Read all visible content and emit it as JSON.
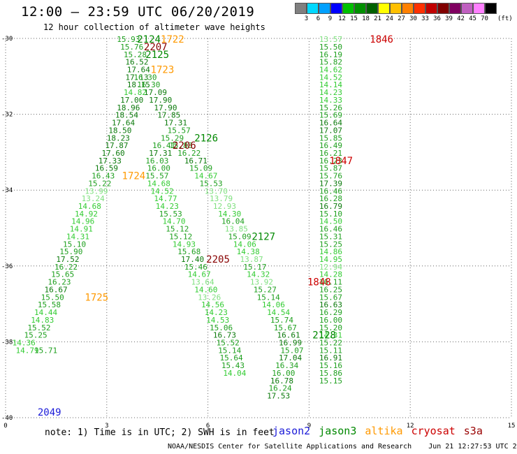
{
  "title": "12:00 – 23:59 UTC 06/20/2019",
  "subtitle": "12 hour collection of altimeter wave heights",
  "colorbar": {
    "colors": [
      "#808080",
      "#00d8ff",
      "#00a0ff",
      "#0000ff",
      "#00c000",
      "#009000",
      "#006000",
      "#ffff00",
      "#ffc000",
      "#ff8000",
      "#ff3000",
      "#c00000",
      "#800000",
      "#800060",
      "#c060c0",
      "#ff80ff",
      "#000000"
    ],
    "labels": [
      "3",
      "6",
      "9",
      "12",
      "15",
      "18",
      "21",
      "24",
      "27",
      "30",
      "33",
      "36",
      "39",
      "42",
      "45",
      "70"
    ],
    "unit": "(ft)"
  },
  "note": "note:  1) Time is in UTC;  2) SWH is in feet",
  "legend": [
    {
      "name": "jason2",
      "color": "#1a1ad8"
    },
    {
      "name": "jason3",
      "color": "#008800"
    },
    {
      "name": "altika",
      "color": "#ff9900"
    },
    {
      "name": "cryosat",
      "color": "#cc0000"
    },
    {
      "name": "s3a",
      "color": "#990000"
    }
  ],
  "footer": {
    "credit": "NOAA/NESDIS Center for Satellite Applications and Research",
    "timestamp": "Jun 21 12:27:53 UTC 2019"
  },
  "chart_data": {
    "type": "scatter",
    "xlim": [
      0,
      15
    ],
    "ylim": [
      -40,
      -30
    ],
    "xticks": [
      0,
      3,
      6,
      9,
      12,
      15
    ],
    "yticks": [
      -30,
      -32,
      -34,
      -36,
      -38,
      -40
    ],
    "grid": true,
    "tracks": [
      {
        "sat": "cryosat",
        "color": "#cc0000",
        "label": "1846",
        "label_pos": [
          10.8,
          -30.02
        ],
        "points": [
          [
            9.3,
            -30.02,
            13.57
          ],
          [
            9.3,
            -30.22,
            15.5
          ],
          [
            9.3,
            -30.42,
            16.19
          ],
          [
            9.3,
            -30.62,
            15.82
          ],
          [
            9.3,
            -30.82,
            14.62
          ],
          [
            9.3,
            -31.02,
            14.52
          ],
          [
            9.3,
            -31.22,
            14.14
          ],
          [
            9.3,
            -31.42,
            14.23
          ],
          [
            9.3,
            -31.62,
            14.33
          ],
          [
            9.3,
            -31.82,
            15.26
          ],
          [
            9.3,
            -32.02,
            15.69
          ],
          [
            9.3,
            -32.22,
            16.64
          ],
          [
            9.3,
            -32.42,
            17.07
          ],
          [
            9.3,
            -32.62,
            15.85
          ],
          [
            9.3,
            -32.82,
            16.49
          ],
          [
            9.3,
            -33.02,
            16.21
          ],
          [
            9.3,
            -33.22,
            16.23
          ],
          [
            9.3,
            -33.42,
            15.87
          ],
          [
            9.3,
            -33.62,
            15.76
          ],
          [
            9.3,
            -33.82,
            17.39
          ],
          [
            9.3,
            -34.02,
            16.46
          ],
          [
            9.3,
            -34.22,
            16.28
          ],
          [
            9.3,
            -34.42,
            16.79
          ],
          [
            9.3,
            -34.62,
            15.1
          ],
          [
            9.3,
            -34.82,
            14.5
          ],
          [
            9.3,
            -35.02,
            16.46
          ],
          [
            9.3,
            -35.22,
            15.31
          ],
          [
            9.3,
            -35.42,
            15.25
          ],
          [
            9.3,
            -35.62,
            14.86
          ],
          [
            9.3,
            -35.82,
            14.95
          ],
          [
            9.3,
            -36.02,
            12.94
          ],
          [
            9.3,
            -36.22,
            14.28
          ],
          [
            9.3,
            -36.42,
            16.11
          ],
          [
            9.3,
            -36.62,
            16.25
          ],
          [
            9.3,
            -36.82,
            15.67
          ],
          [
            9.3,
            -37.02,
            16.63
          ],
          [
            9.3,
            -37.22,
            16.29
          ],
          [
            9.3,
            -37.42,
            16.0
          ],
          [
            9.3,
            -37.62,
            15.2
          ],
          [
            9.3,
            -37.82,
            14.31
          ],
          [
            9.3,
            -38.02,
            15.22
          ],
          [
            9.3,
            -38.22,
            15.11
          ],
          [
            9.3,
            -38.42,
            16.91
          ],
          [
            9.3,
            -38.62,
            15.16
          ],
          [
            9.3,
            -38.82,
            15.86
          ],
          [
            9.3,
            -39.02,
            15.15
          ]
        ]
      },
      {
        "sat": "cryosat",
        "color": "#cc0000",
        "label": "1847",
        "label_pos": [
          9.6,
          -33.22
        ],
        "points": []
      },
      {
        "sat": "cryosat",
        "color": "#cc0000",
        "label": "1848",
        "label_pos": [
          8.95,
          -36.42
        ],
        "points": []
      },
      {
        "sat": "altika",
        "color": "#ff9900",
        "label": "1722",
        "label_pos": [
          4.6,
          -30.02
        ],
        "points": []
      },
      {
        "sat": "altika",
        "color": "#ff9900",
        "label": "1723",
        "label_pos": [
          4.3,
          -30.82
        ],
        "points": []
      },
      {
        "sat": "altika",
        "color": "#ff9900",
        "label": "1724",
        "label_pos": [
          3.45,
          -33.62
        ],
        "points": []
      },
      {
        "sat": "altika",
        "color": "#ff9900",
        "label": "1725",
        "label_pos": [
          2.35,
          -36.82
        ],
        "points": []
      },
      {
        "sat": "jason2",
        "color": "#1a1ad8",
        "label": "2049",
        "label_pos": [
          0.95,
          -39.85
        ],
        "points": []
      },
      {
        "sat": "jason3",
        "color": "#008800",
        "label": "2124",
        "label_pos": [
          3.9,
          -30.02
        ],
        "points": []
      },
      {
        "sat": "jason3",
        "color": "#008800",
        "label": "2125",
        "label_pos": [
          4.15,
          -30.42
        ],
        "points": []
      },
      {
        "sat": "jason3",
        "color": "#008800",
        "label": "2126",
        "label_pos": [
          5.6,
          -32.62
        ],
        "points": []
      },
      {
        "sat": "jason3",
        "color": "#008800",
        "label": "2127",
        "label_pos": [
          7.3,
          -35.22
        ],
        "points": []
      },
      {
        "sat": "jason3",
        "color": "#008800",
        "label": "2128",
        "label_pos": [
          9.1,
          -37.82
        ],
        "points": []
      },
      {
        "sat": "s3a",
        "color": "#880000",
        "label": "2205",
        "label_pos": [
          5.95,
          -35.82
        ],
        "points": []
      },
      {
        "sat": "s3a",
        "color": "#880000",
        "label": "2206",
        "label_pos": [
          4.95,
          -32.82
        ],
        "points": []
      },
      {
        "sat": "s3a",
        "color": "#880000",
        "label": "2207",
        "label_pos": [
          4.1,
          -30.22
        ],
        "points": []
      }
    ],
    "tracks_main": [
      {
        "name": "descending-A",
        "points": [
          [
            3.3,
            -30.02,
            15.93
          ],
          [
            3.4,
            -30.22,
            15.76
          ],
          [
            3.5,
            -30.42,
            15.28
          ],
          [
            3.55,
            -30.62,
            16.52
          ],
          [
            3.6,
            -30.82,
            17.64
          ],
          [
            3.55,
            -31.02,
            17.13
          ],
          [
            3.6,
            -31.22,
            18.15
          ],
          [
            3.5,
            -31.42,
            14.82
          ],
          [
            3.4,
            -31.62,
            17.0
          ],
          [
            3.3,
            -31.82,
            18.96
          ],
          [
            3.25,
            -32.02,
            18.54
          ],
          [
            3.15,
            -32.22,
            17.64
          ],
          [
            3.05,
            -32.42,
            18.5
          ],
          [
            3.0,
            -32.62,
            18.23
          ],
          [
            2.95,
            -32.82,
            17.87
          ],
          [
            2.85,
            -33.02,
            17.6
          ],
          [
            2.75,
            -33.22,
            17.33
          ],
          [
            2.65,
            -33.42,
            16.59
          ],
          [
            2.55,
            -33.62,
            16.43
          ],
          [
            2.45,
            -33.82,
            15.22
          ],
          [
            2.35,
            -34.02,
            13.99
          ],
          [
            2.25,
            -34.22,
            13.24
          ],
          [
            2.15,
            -34.42,
            14.68
          ],
          [
            2.05,
            -34.62,
            14.92
          ],
          [
            1.95,
            -34.82,
            14.96
          ],
          [
            1.9,
            -35.02,
            14.91
          ],
          [
            1.8,
            -35.22,
            14.31
          ],
          [
            1.7,
            -35.42,
            15.1
          ],
          [
            1.6,
            -35.62,
            15.9
          ],
          [
            1.5,
            -35.82,
            17.52
          ],
          [
            1.45,
            -36.02,
            16.22
          ],
          [
            1.35,
            -36.22,
            15.65
          ],
          [
            1.25,
            -36.42,
            16.23
          ],
          [
            1.15,
            -36.62,
            16.67
          ],
          [
            1.05,
            -36.82,
            15.5
          ],
          [
            0.95,
            -37.02,
            15.58
          ],
          [
            0.85,
            -37.22,
            14.44
          ],
          [
            0.75,
            -37.42,
            14.83
          ],
          [
            0.65,
            -37.62,
            15.52
          ],
          [
            0.55,
            -37.82,
            15.25
          ],
          [
            0.2,
            -38.02,
            14.36
          ],
          [
            0.3,
            -38.22,
            14.79
          ],
          [
            0.85,
            -38.22,
            15.71
          ]
        ]
      },
      {
        "name": "descending-B",
        "points": [
          [
            3.8,
            -31.02,
            16.3
          ],
          [
            3.9,
            -31.22,
            16.3
          ],
          [
            4.1,
            -31.42,
            17.09
          ],
          [
            4.25,
            -31.62,
            17.9
          ],
          [
            4.4,
            -31.82,
            17.9
          ],
          [
            4.5,
            -32.02,
            17.85
          ],
          [
            4.7,
            -32.22,
            17.31
          ],
          [
            4.8,
            -32.42,
            15.57
          ],
          [
            4.6,
            -32.62,
            15.29
          ],
          [
            4.35,
            -32.82,
            16.41
          ],
          [
            4.25,
            -33.02,
            17.31
          ],
          [
            4.15,
            -33.22,
            16.03
          ],
          [
            4.2,
            -33.42,
            16.0
          ],
          [
            4.15,
            -33.62,
            15.57
          ],
          [
            4.2,
            -33.82,
            14.68
          ],
          [
            4.3,
            -34.02,
            14.52
          ],
          [
            4.4,
            -34.22,
            14.77
          ],
          [
            4.45,
            -34.42,
            14.23
          ],
          [
            4.55,
            -34.62,
            15.53
          ],
          [
            4.65,
            -34.82,
            14.7
          ],
          [
            4.75,
            -35.02,
            15.12
          ],
          [
            4.85,
            -35.22,
            15.12
          ],
          [
            4.95,
            -35.42,
            14.93
          ],
          [
            5.1,
            -35.62,
            15.68
          ],
          [
            5.2,
            -35.82,
            17.4
          ],
          [
            5.3,
            -36.02,
            15.46
          ],
          [
            5.4,
            -36.22,
            14.67
          ],
          [
            5.5,
            -36.42,
            13.64
          ],
          [
            5.6,
            -36.62,
            14.6
          ],
          [
            5.7,
            -36.82,
            13.26
          ],
          [
            5.8,
            -37.02,
            14.56
          ],
          [
            5.9,
            -37.22,
            14.23
          ],
          [
            5.95,
            -37.42,
            14.53
          ],
          [
            6.05,
            -37.62,
            15.06
          ],
          [
            6.15,
            -37.82,
            16.73
          ],
          [
            6.25,
            -38.02,
            15.52
          ],
          [
            6.3,
            -38.22,
            15.14
          ],
          [
            6.35,
            -38.42,
            15.64
          ],
          [
            6.4,
            -38.62,
            15.43
          ],
          [
            6.45,
            -38.82,
            14.04
          ]
        ]
      },
      {
        "name": "descending-C",
        "points": [
          [
            4.85,
            -32.82,
            15.88
          ],
          [
            5.1,
            -33.02,
            16.22
          ],
          [
            5.3,
            -33.22,
            16.71
          ],
          [
            5.45,
            -33.42,
            15.09
          ],
          [
            5.6,
            -33.62,
            14.67
          ],
          [
            5.75,
            -33.82,
            15.53
          ],
          [
            5.9,
            -34.02,
            13.7
          ],
          [
            6.05,
            -34.22,
            13.79
          ],
          [
            6.15,
            -34.42,
            12.93
          ],
          [
            6.3,
            -34.62,
            14.3
          ],
          [
            6.4,
            -34.82,
            16.04
          ],
          [
            6.5,
            -35.02,
            13.85
          ],
          [
            6.6,
            -35.22,
            15.09
          ],
          [
            6.75,
            -35.42,
            14.06
          ],
          [
            6.85,
            -35.62,
            14.38
          ],
          [
            6.95,
            -35.82,
            13.87
          ],
          [
            7.05,
            -36.02,
            15.17
          ],
          [
            7.15,
            -36.22,
            14.32
          ],
          [
            7.25,
            -36.42,
            13.92
          ],
          [
            7.35,
            -36.62,
            15.27
          ],
          [
            7.45,
            -36.82,
            15.14
          ],
          [
            7.6,
            -37.02,
            14.06
          ],
          [
            7.75,
            -37.22,
            14.54
          ],
          [
            7.85,
            -37.42,
            15.74
          ],
          [
            7.95,
            -37.62,
            15.67
          ],
          [
            8.05,
            -37.82,
            16.61
          ],
          [
            8.1,
            -38.02,
            16.99
          ],
          [
            8.15,
            -38.22,
            15.07
          ],
          [
            8.1,
            -38.42,
            17.04
          ],
          [
            8.0,
            -38.62,
            16.34
          ],
          [
            7.9,
            -38.82,
            16.0
          ],
          [
            7.85,
            -39.02,
            16.78
          ],
          [
            7.8,
            -39.22,
            16.24
          ],
          [
            7.75,
            -39.42,
            17.53
          ]
        ]
      }
    ]
  }
}
